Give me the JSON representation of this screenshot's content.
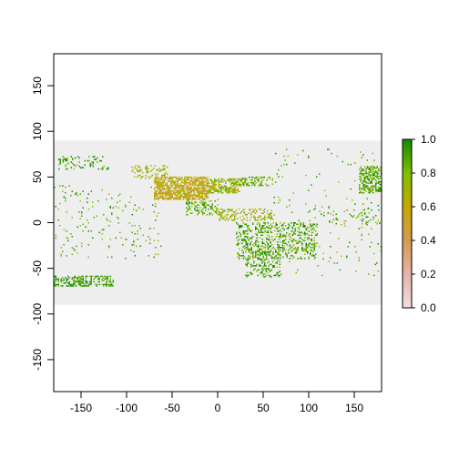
{
  "chart_data": {
    "type": "heatmap",
    "title": "",
    "xlabel": "",
    "ylabel": "",
    "xlim": [
      -180,
      180
    ],
    "ylim": [
      -185,
      185
    ],
    "raster_extent": {
      "x": [
        -180,
        180
      ],
      "y": [
        -90,
        90
      ]
    },
    "background_value_color": "#eeeeee",
    "x_ticks": [
      -150,
      -100,
      -50,
      0,
      50,
      100,
      150
    ],
    "y_ticks": [
      -150,
      -100,
      -50,
      0,
      50,
      100,
      150
    ],
    "x_tick_labels": [
      "-150",
      "-100",
      "-50",
      "0",
      "50",
      "100",
      "150"
    ],
    "y_tick_labels": [
      "-150",
      "-100",
      "-50",
      "0",
      "50",
      "100",
      "150"
    ],
    "legend": {
      "range": [
        0,
        1
      ],
      "ticks": [
        0.0,
        0.2,
        0.4,
        0.6,
        0.8,
        1.0
      ],
      "tick_labels": [
        "0.0",
        "0.2",
        "0.4",
        "0.6",
        "0.8",
        "1.0"
      ],
      "colors": [
        "#f2dede",
        "#e6b3a8",
        "#d79a52",
        "#c6a800",
        "#7fbf00",
        "#0f8a00"
      ]
    },
    "clusters": [
      {
        "lon": [
          -70,
          -10
        ],
        "lat": [
          25,
          50
        ],
        "value": 0.58,
        "density": 0.75
      },
      {
        "lon": [
          -10,
          25
        ],
        "lat": [
          32,
          48
        ],
        "value": 0.72,
        "density": 0.65
      },
      {
        "lon": [
          25,
          60
        ],
        "lat": [
          40,
          50
        ],
        "value": 0.85,
        "density": 0.45
      },
      {
        "lon": [
          -95,
          -55
        ],
        "lat": [
          48,
          62
        ],
        "value": 0.7,
        "density": 0.25
      },
      {
        "lon": [
          -175,
          -120
        ],
        "lat": [
          58,
          72
        ],
        "value": 0.92,
        "density": 0.22
      },
      {
        "lon": [
          -35,
          0
        ],
        "lat": [
          8,
          25
        ],
        "value": 0.85,
        "density": 0.35
      },
      {
        "lon": [
          0,
          60
        ],
        "lat": [
          2,
          15
        ],
        "value": 0.7,
        "density": 0.3
      },
      {
        "lon": [
          20,
          110
        ],
        "lat": [
          -40,
          0
        ],
        "value": 0.88,
        "density": 0.3
      },
      {
        "lon": [
          30,
          70
        ],
        "lat": [
          -60,
          -30
        ],
        "value": 0.9,
        "density": 0.25
      },
      {
        "lon": [
          -180,
          -115
        ],
        "lat": [
          -70,
          -58
        ],
        "value": 0.95,
        "density": 0.45
      },
      {
        "lon": [
          155,
          180
        ],
        "lat": [
          32,
          62
        ],
        "value": 0.88,
        "density": 0.55
      },
      {
        "lon": [
          110,
          180
        ],
        "lat": [
          -2,
          15
        ],
        "value": 0.85,
        "density": 0.1
      },
      {
        "lon": [
          -180,
          -60
        ],
        "lat": [
          -40,
          40
        ],
        "value": 0.85,
        "density": 0.03
      },
      {
        "lon": [
          60,
          180
        ],
        "lat": [
          -60,
          80
        ],
        "value": 0.85,
        "density": 0.02
      }
    ]
  }
}
